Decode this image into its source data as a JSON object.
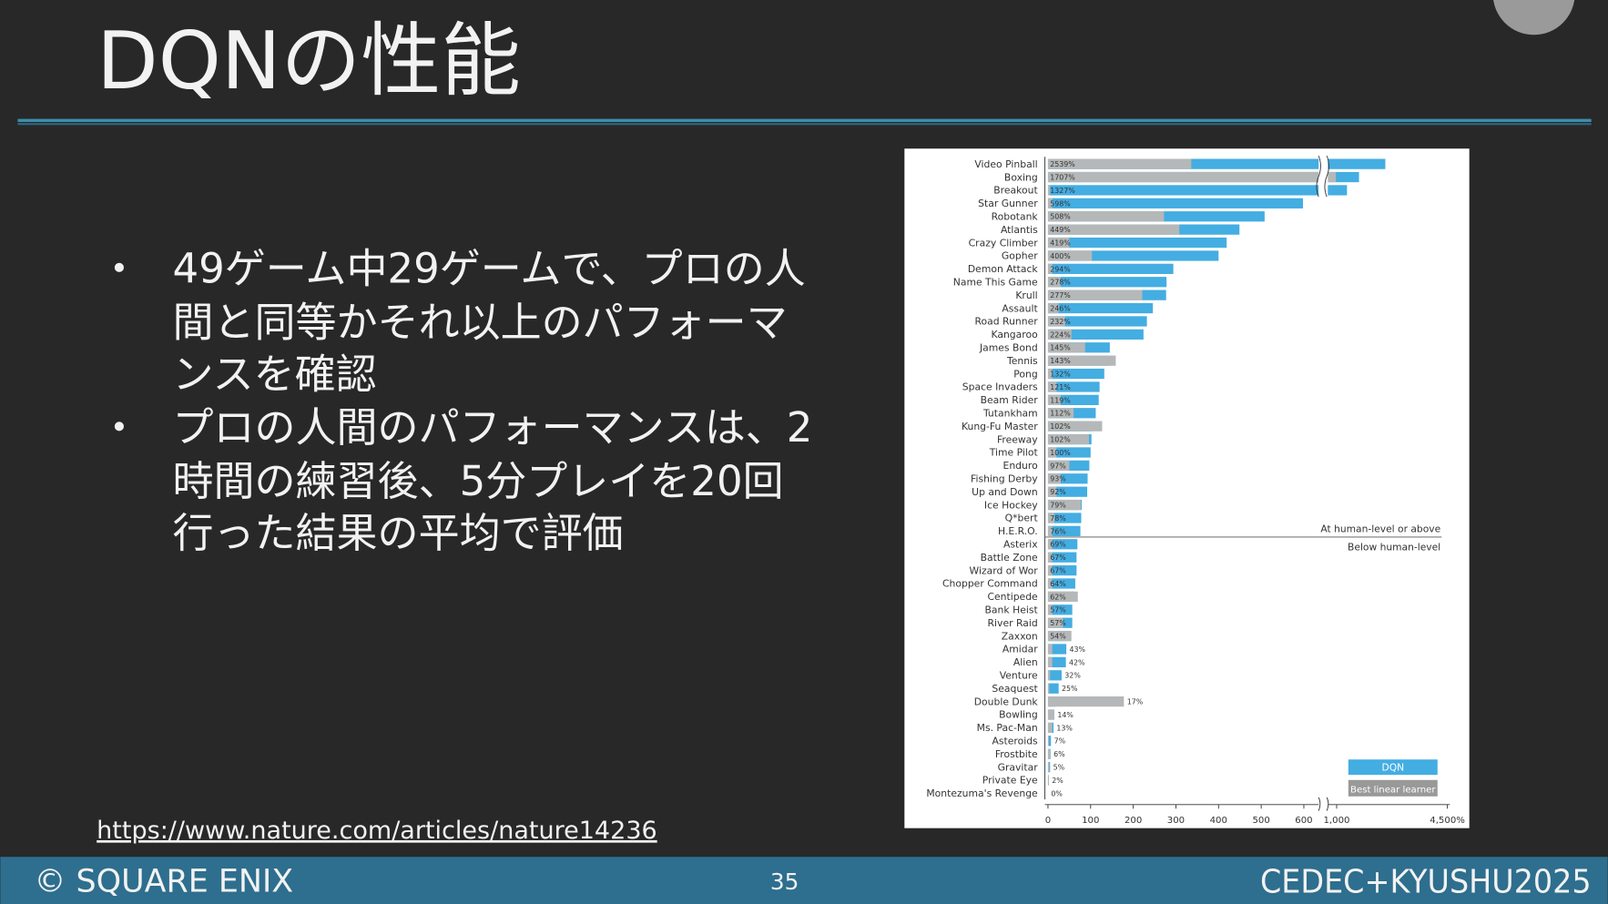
{
  "slide": {
    "title": "DQNの性能",
    "bullets": [
      [
        "49ゲーム中29ゲームで、プロの人",
        "間と同等かそれ以上のパフォーマ",
        "ンスを確認"
      ],
      [
        "プロの人間のパフォーマンスは、2",
        "時間の練習後、5分プレイを20回",
        "行った結果の平均で評価"
      ]
    ],
    "link": "https://www.nature.com/articles/nature14236",
    "copyright": "© SQUARE ENIX",
    "page_number": 35,
    "event": "CEDEC+KYUSHU2025"
  },
  "chart_data": {
    "type": "bar",
    "orientation": "horizontal",
    "categories": [
      "Video Pinball",
      "Boxing",
      "Breakout",
      "Star Gunner",
      "Robotank",
      "Atlantis",
      "Crazy Climber",
      "Gopher",
      "Demon Attack",
      "Name This Game",
      "Krull",
      "Assault",
      "Road Runner",
      "Kangaroo",
      "James Bond",
      "Tennis",
      "Pong",
      "Space Invaders",
      "Beam Rider",
      "Tutankham",
      "Kung-Fu Master",
      "Freeway",
      "Time Pilot",
      "Enduro",
      "Fishing Derby",
      "Up and Down",
      "Ice Hockey",
      "Q*bert",
      "H.E.R.O.",
      "Asterix",
      "Battle Zone",
      "Wizard of Wor",
      "Chopper Command",
      "Centipede",
      "Bank Heist",
      "River Raid",
      "Zaxxon",
      "Amidar",
      "Alien",
      "Venture",
      "Seaquest",
      "Double Dunk",
      "Bowling",
      "Ms. Pac-Man",
      "Asteroids",
      "Frostbite",
      "Gravitar",
      "Private Eye",
      "Montezuma's Revenge"
    ],
    "series": [
      {
        "name": "DQN",
        "color": "#44ade2",
        "values": [
          2539,
          1707,
          1327,
          598,
          508,
          449,
          419,
          400,
          294,
          278,
          277,
          246,
          232,
          224,
          145,
          143,
          132,
          121,
          119,
          112,
          102,
          102,
          100,
          97,
          93,
          92,
          79,
          78,
          76,
          69,
          67,
          67,
          64,
          62,
          57,
          57,
          54,
          43,
          42,
          32,
          25,
          17,
          14,
          13,
          7,
          6,
          5,
          2,
          0
        ],
        "value_labels": [
          "2539%",
          "1707%",
          "1327%",
          "598%",
          "508%",
          "449%",
          "419%",
          "400%",
          "294%",
          "278%",
          "277%",
          "246%",
          "232%",
          "224%",
          "145%",
          "143%",
          "132%",
          "121%",
          "119%",
          "112%",
          "102%",
          "102%",
          "100%",
          "97%",
          "93%",
          "92%",
          "79%",
          "78%",
          "76%",
          "69%",
          "67%",
          "67%",
          "64%",
          "62%",
          "57%",
          "57%",
          "54%",
          "43%",
          "42%",
          "32%",
          "25%",
          "17%",
          "14%",
          "13%",
          "7%",
          "6%",
          "5%",
          "2%",
          "0%"
        ]
      },
      {
        "name": "Best linear learner",
        "color": "#b5b8b8",
        "values": [
          336,
          990,
          5,
          10,
          272,
          308,
          50,
          103,
          10,
          30,
          221,
          25,
          40,
          55,
          87,
          159,
          10,
          20,
          30,
          60,
          127,
          96,
          20,
          50,
          30,
          20,
          77,
          15,
          10,
          10,
          10,
          10,
          10,
          70,
          10,
          35,
          55,
          10,
          10,
          5,
          3,
          178,
          15,
          10,
          2,
          5,
          3,
          2,
          0
        ]
      }
    ],
    "xlim": [
      0,
      4500
    ],
    "xticks": [
      0,
      100,
      200,
      300,
      400,
      500,
      600,
      {
        "value": 1000,
        "label": "1,000"
      },
      {
        "value": 4500,
        "label": "4,500%"
      }
    ],
    "annotations": [
      "At human-level or above",
      "Below human-level"
    ]
  }
}
